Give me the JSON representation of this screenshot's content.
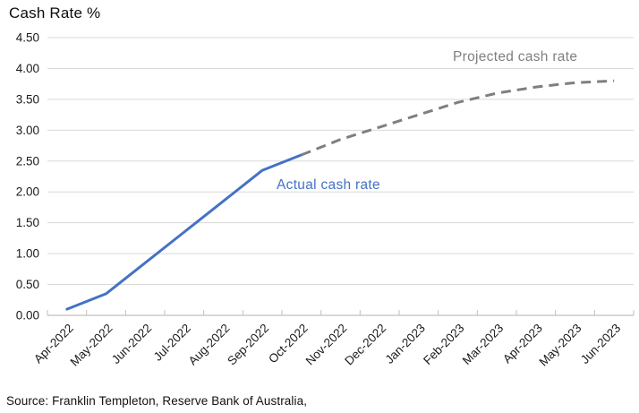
{
  "title": "Cash Rate %",
  "source_note": "Source: Franklin Templeton, Reserve Bank of Australia,",
  "annotations": {
    "actual_label": "Actual cash rate",
    "projected_label": "Projected cash rate"
  },
  "colors": {
    "actual_line": "#4472C4",
    "projected_line": "#7F7F7F",
    "gridline": "#D9D9D9",
    "axis_line": "#BFBFBF",
    "label_text": "#1A1A1A",
    "background": "#FFFFFF"
  },
  "chart_data": {
    "type": "line",
    "title": "Cash Rate %",
    "xlabel": "",
    "ylabel": "Cash Rate %",
    "categories": [
      "Apr-2022",
      "May-2022",
      "Jun-2022",
      "Jul-2022",
      "Aug-2022",
      "Sep-2022",
      "Oct-2022",
      "Nov-2022",
      "Dec-2022",
      "Jan-2023",
      "Feb-2023",
      "Mar-2023",
      "Apr-2023",
      "May-2023",
      "Jun-2023"
    ],
    "series": [
      {
        "name": "Actual cash rate",
        "color": "#4472C4",
        "line_style": "solid",
        "values": [
          0.1,
          0.35,
          0.85,
          1.35,
          1.85,
          2.35,
          2.6,
          null,
          null,
          null,
          null,
          null,
          null,
          null,
          null
        ]
      },
      {
        "name": "Projected cash rate",
        "color": "#7F7F7F",
        "line_style": "dashed",
        "values": [
          null,
          null,
          null,
          null,
          null,
          null,
          2.6,
          2.85,
          3.05,
          3.25,
          3.45,
          3.6,
          3.7,
          3.77,
          3.8
        ]
      }
    ],
    "ylim": [
      0,
      4.5
    ],
    "ytick_step": 0.5,
    "ytick_labels": [
      "0.00",
      "0.50",
      "1.00",
      "1.50",
      "2.00",
      "2.50",
      "3.00",
      "3.50",
      "4.00",
      "4.50"
    ],
    "grid": true,
    "legend_position": "inline-labels"
  }
}
